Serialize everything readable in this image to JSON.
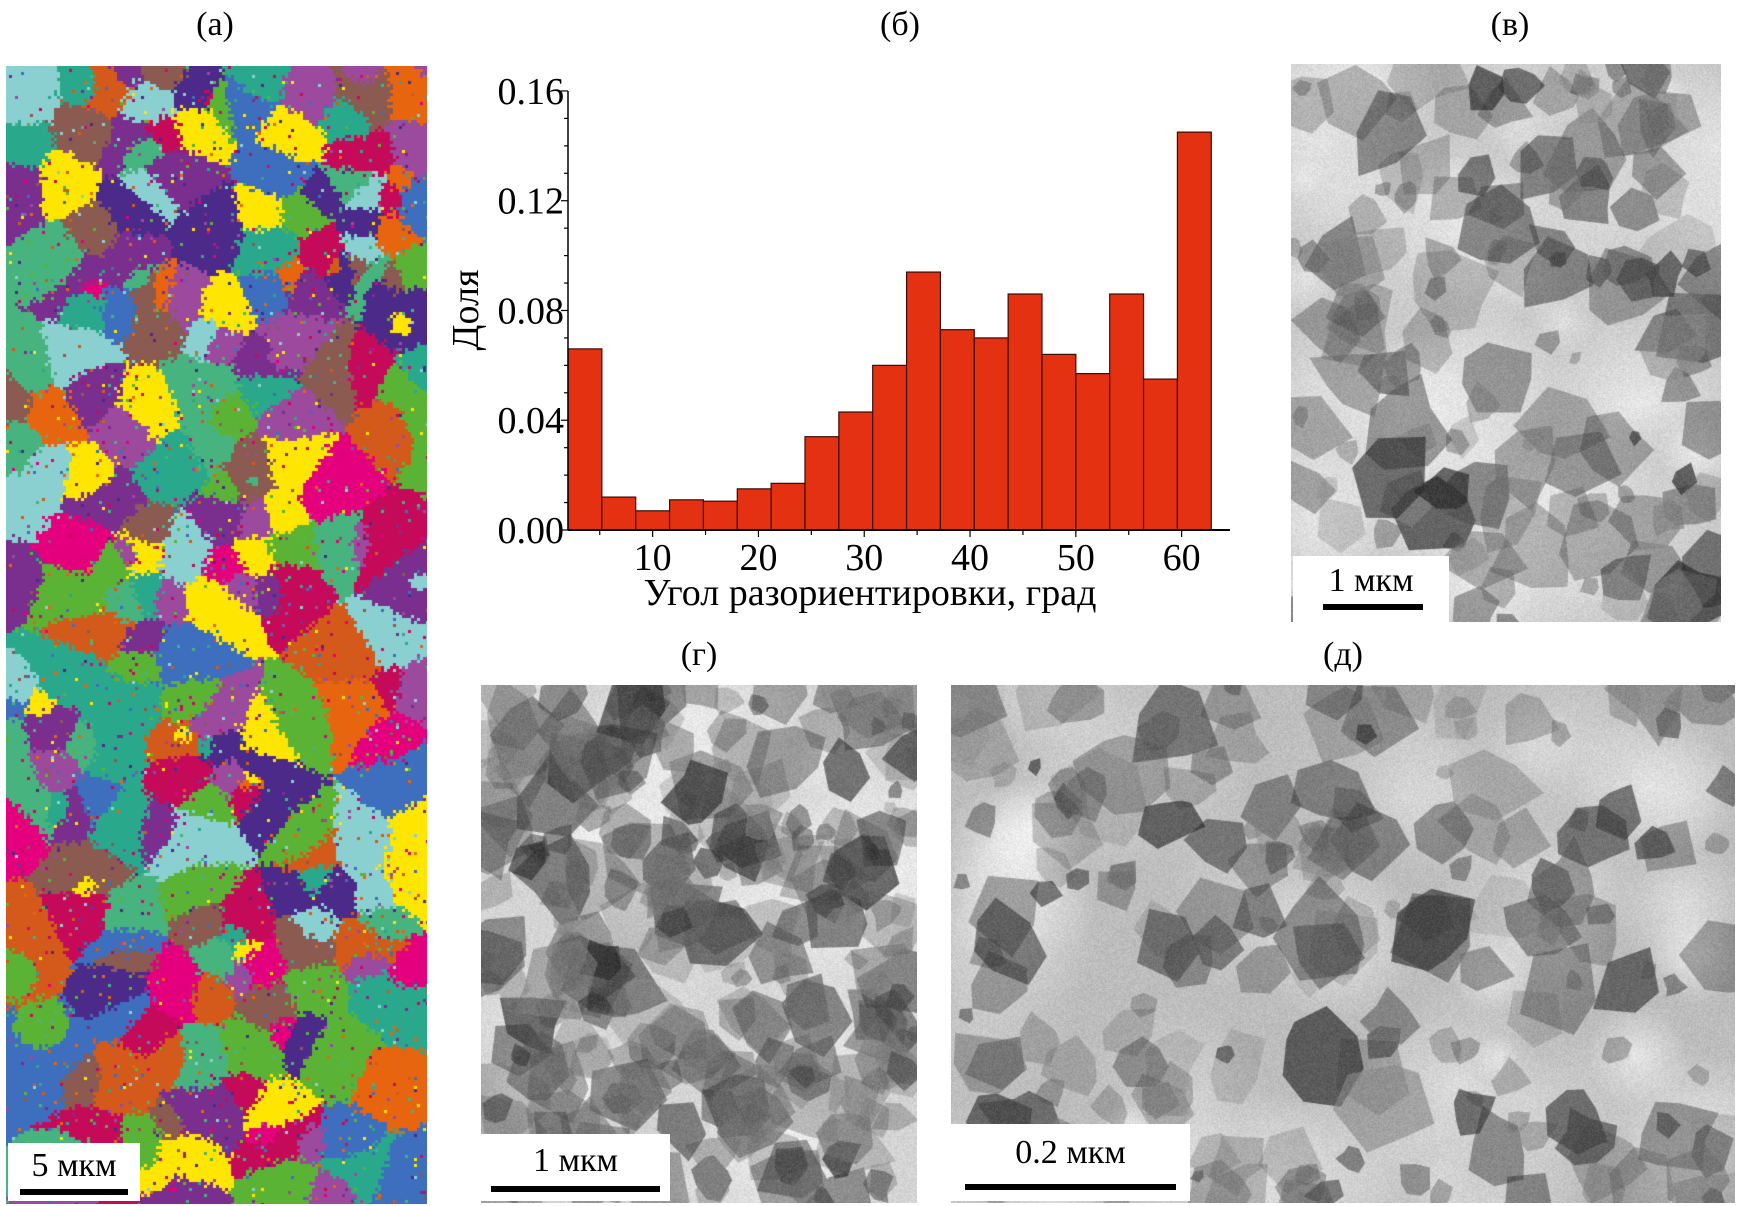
{
  "panels": {
    "a": {
      "label": "(а)",
      "scale_bar": "5 мкм"
    },
    "b": {
      "label": "(б)"
    },
    "v": {
      "label": "(в)",
      "scale_bar": "1 мкм"
    },
    "g": {
      "label": "(г)",
      "scale_bar": "1 мкм"
    },
    "d": {
      "label": "(д)",
      "scale_bar": "0.2 мкм"
    }
  },
  "ebsd_palette": [
    "#e4007c",
    "#4b2a8a",
    "#e8650f",
    "#3d6fbe",
    "#5bb336",
    "#ffe600",
    "#c60a5a",
    "#8ad0d0",
    "#47b37e",
    "#9b4a9e",
    "#8b5a50",
    "#d35a1a",
    "#7a2e8e",
    "#2aa88c"
  ],
  "chart_data": {
    "type": "bar",
    "title": "",
    "xlabel": "Угол разориентировки, град",
    "ylabel": "Доля",
    "xlim": [
      2,
      64
    ],
    "ylim": [
      0,
      0.16
    ],
    "xticks": [
      10,
      20,
      30,
      40,
      50,
      60
    ],
    "yticks": [
      "0.00",
      "0.04",
      "0.08",
      "0.12",
      "0.16"
    ],
    "bin_start": 2,
    "bin_width": 3.2,
    "values": [
      0.066,
      0.012,
      0.007,
      0.011,
      0.0105,
      0.015,
      0.017,
      0.034,
      0.043,
      0.06,
      0.094,
      0.073,
      0.07,
      0.086,
      0.064,
      0.057,
      0.086,
      0.055,
      0.145
    ],
    "bar_color": "#e33112",
    "grid": false
  }
}
